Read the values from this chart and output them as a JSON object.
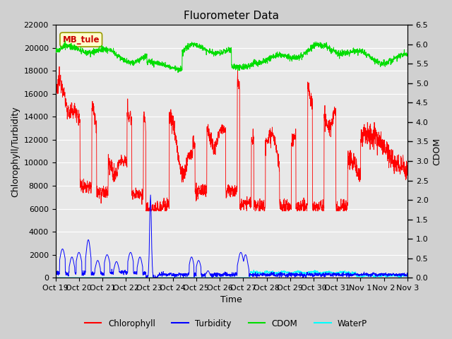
{
  "title": "Fluorometer Data",
  "xlabel": "Time",
  "ylabel_left": "Chlorophyll/Turbidity",
  "ylabel_right": "CDOM",
  "ylim_left": [
    0,
    22000
  ],
  "ylim_right": [
    0.0,
    6.5
  ],
  "yticks_left": [
    0,
    2000,
    4000,
    6000,
    8000,
    10000,
    12000,
    14000,
    16000,
    18000,
    20000,
    22000
  ],
  "yticks_right": [
    0.0,
    0.5,
    1.0,
    1.5,
    2.0,
    2.5,
    3.0,
    3.5,
    4.0,
    4.5,
    5.0,
    5.5,
    6.0,
    6.5
  ],
  "annotation_text": "MB_tule",
  "annotation_color": "#cc0000",
  "annotation_bg": "#ffffcc",
  "annotation_edge": "#999900",
  "bg_color": "#d0d0d0",
  "plot_bg": "#e8e8e8",
  "chlorophyll_color": "red",
  "turbidity_color": "blue",
  "cdom_color": "#00dd00",
  "waterp_color": "cyan",
  "grid_color": "white",
  "xtick_labels": [
    "Oct 19",
    "Oct 20",
    "Oct 21",
    "Oct 22",
    "Oct 23",
    "Oct 24",
    "Oct 25",
    "Oct 26",
    "Oct 27",
    "Oct 28",
    "Oct 29",
    "Oct 30",
    "Oct 31",
    "Nov 1",
    "Nov 2",
    "Nov 3"
  ],
  "title_fontsize": 11,
  "axis_label_fontsize": 9,
  "tick_fontsize": 8
}
